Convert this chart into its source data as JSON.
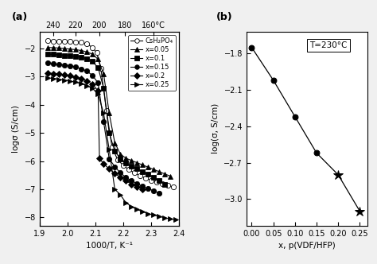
{
  "panel_a": {
    "title_label": "(a)",
    "xlabel": "1000/T, K⁻¹",
    "ylabel": "logσ (S/cm)",
    "top_ticks_c": [
      240,
      220,
      200,
      180,
      160
    ],
    "top_ticks_labels": [
      "240",
      "220",
      "200",
      "180",
      "160°C"
    ],
    "xlim": [
      1.9,
      2.4
    ],
    "ylim": [
      -8.3,
      -1.4
    ],
    "yticks": [
      -8,
      -7,
      -6,
      -5,
      -4,
      -3,
      -2
    ],
    "xticks": [
      1.9,
      2.0,
      2.1,
      2.2,
      2.3,
      2.4
    ],
    "series": {
      "CsH2PO4": {
        "x": [
          1.93,
          1.95,
          1.97,
          1.99,
          2.01,
          2.03,
          2.05,
          2.07,
          2.09,
          2.105,
          2.12,
          2.14,
          2.16,
          2.18,
          2.2,
          2.22,
          2.24,
          2.26,
          2.28,
          2.3,
          2.32,
          2.34,
          2.36,
          2.38
        ],
        "y": [
          -1.72,
          -1.73,
          -1.74,
          -1.74,
          -1.75,
          -1.76,
          -1.78,
          -1.84,
          -1.96,
          -2.15,
          -2.7,
          -4.2,
          -5.5,
          -5.95,
          -6.15,
          -6.3,
          -6.42,
          -6.52,
          -6.6,
          -6.68,
          -6.74,
          -6.8,
          -6.86,
          -6.93
        ],
        "marker": "o",
        "mfc": "white",
        "mec": "black",
        "linestyle": "-",
        "color": "black",
        "ms": 4.5
      },
      "x005": {
        "x": [
          1.93,
          1.95,
          1.97,
          1.99,
          2.01,
          2.03,
          2.05,
          2.07,
          2.09,
          2.11,
          2.13,
          2.15,
          2.17,
          2.19,
          2.21,
          2.23,
          2.25,
          2.27,
          2.29,
          2.31,
          2.33,
          2.35,
          2.37
        ],
        "y": [
          -1.96,
          -1.97,
          -1.98,
          -2.0,
          -2.02,
          -2.04,
          -2.07,
          -2.12,
          -2.2,
          -2.38,
          -2.9,
          -4.3,
          -5.35,
          -5.75,
          -5.9,
          -5.98,
          -6.06,
          -6.14,
          -6.22,
          -6.3,
          -6.38,
          -6.46,
          -6.54
        ],
        "marker": "^",
        "mfc": "black",
        "mec": "black",
        "linestyle": "-",
        "color": "black",
        "ms": 4.5
      },
      "x01": {
        "x": [
          1.93,
          1.95,
          1.97,
          1.99,
          2.01,
          2.03,
          2.05,
          2.07,
          2.09,
          2.11,
          2.13,
          2.15,
          2.17,
          2.19,
          2.21,
          2.23,
          2.25,
          2.27,
          2.29,
          2.31,
          2.33,
          2.35
        ],
        "y": [
          -2.2,
          -2.21,
          -2.22,
          -2.24,
          -2.26,
          -2.28,
          -2.31,
          -2.36,
          -2.46,
          -2.68,
          -3.4,
          -5.0,
          -5.65,
          -5.92,
          -6.08,
          -6.18,
          -6.28,
          -6.38,
          -6.48,
          -6.58,
          -6.7,
          -6.82
        ],
        "marker": "s",
        "mfc": "black",
        "mec": "black",
        "linestyle": "-",
        "color": "black",
        "ms": 4.5
      },
      "x015": {
        "x": [
          1.93,
          1.95,
          1.97,
          1.99,
          2.01,
          2.03,
          2.05,
          2.07,
          2.09,
          2.11,
          2.13,
          2.15,
          2.17,
          2.19,
          2.21,
          2.23,
          2.25,
          2.27,
          2.29,
          2.31,
          2.33
        ],
        "y": [
          -2.52,
          -2.54,
          -2.56,
          -2.58,
          -2.61,
          -2.65,
          -2.72,
          -2.8,
          -2.96,
          -3.22,
          -4.6,
          -5.92,
          -6.2,
          -6.42,
          -6.58,
          -6.7,
          -6.8,
          -6.9,
          -6.98,
          -7.06,
          -7.14
        ],
        "marker": "o",
        "mfc": "black",
        "mec": "black",
        "linestyle": "-",
        "color": "black",
        "ms": 4.5
      },
      "x02": {
        "x": [
          1.93,
          1.95,
          1.97,
          1.99,
          2.01,
          2.03,
          2.05,
          2.07,
          2.09,
          2.11,
          2.115,
          2.13,
          2.15,
          2.17,
          2.19,
          2.21,
          2.23,
          2.25,
          2.27
        ],
        "y": [
          -2.87,
          -2.89,
          -2.91,
          -2.94,
          -2.97,
          -3.02,
          -3.08,
          -3.15,
          -3.27,
          -3.5,
          -5.9,
          -6.1,
          -6.28,
          -6.44,
          -6.58,
          -6.7,
          -6.82,
          -6.92,
          -7.0
        ],
        "marker": "D",
        "mfc": "black",
        "mec": "black",
        "linestyle": "-",
        "color": "black",
        "ms": 3.8
      },
      "x025": {
        "x": [
          1.93,
          1.95,
          1.97,
          1.99,
          2.01,
          2.03,
          2.05,
          2.07,
          2.09,
          2.11,
          2.13,
          2.15,
          2.17,
          2.19,
          2.21,
          2.23,
          2.25,
          2.27,
          2.29,
          2.31,
          2.33,
          2.35,
          2.37,
          2.39
        ],
        "y": [
          -3.04,
          -3.06,
          -3.09,
          -3.12,
          -3.16,
          -3.2,
          -3.25,
          -3.32,
          -3.42,
          -3.62,
          -4.3,
          -5.6,
          -7.0,
          -7.2,
          -7.48,
          -7.62,
          -7.72,
          -7.8,
          -7.87,
          -7.92,
          -7.97,
          -8.02,
          -8.06,
          -8.08
        ],
        "marker": ">",
        "mfc": "black",
        "mec": "black",
        "linestyle": "-",
        "color": "black",
        "ms": 4.5
      }
    },
    "legend": [
      {
        "label": "CsH₂PO₄",
        "marker": "o",
        "mfc": "white"
      },
      {
        "label": "x=0.05",
        "marker": "^",
        "mfc": "black"
      },
      {
        "label": "x=0.1",
        "marker": "s",
        "mfc": "black"
      },
      {
        "label": "x=0.15",
        "marker": "o",
        "mfc": "black"
      },
      {
        "label": "x=0.2",
        "marker": "D",
        "mfc": "black"
      },
      {
        "label": "x=0.25",
        "marker": ">",
        "mfc": "black"
      }
    ]
  },
  "panel_b": {
    "title_label": "(b)",
    "annotation": "T=230°C",
    "xlabel": "x, p(VDF/HFP)",
    "ylabel": "log(σ, S/cm)",
    "xlim": [
      -0.012,
      0.268
    ],
    "ylim": [
      -3.22,
      -1.62
    ],
    "yticks": [
      -3.0,
      -2.7,
      -2.4,
      -2.1,
      -1.8
    ],
    "xticks": [
      0.0,
      0.05,
      0.1,
      0.15,
      0.2,
      0.25
    ],
    "x": [
      0.0,
      0.05,
      0.1,
      0.15,
      0.2,
      0.25
    ],
    "y": [
      -1.75,
      -2.02,
      -2.32,
      -2.62,
      -2.8,
      -3.1
    ],
    "markers": [
      "o",
      "o",
      "o",
      "o",
      "*",
      "*"
    ],
    "mfc": [
      "black",
      "black",
      "black",
      "black",
      "black",
      "black"
    ],
    "ms": [
      5,
      5,
      5,
      5,
      9,
      9
    ]
  }
}
